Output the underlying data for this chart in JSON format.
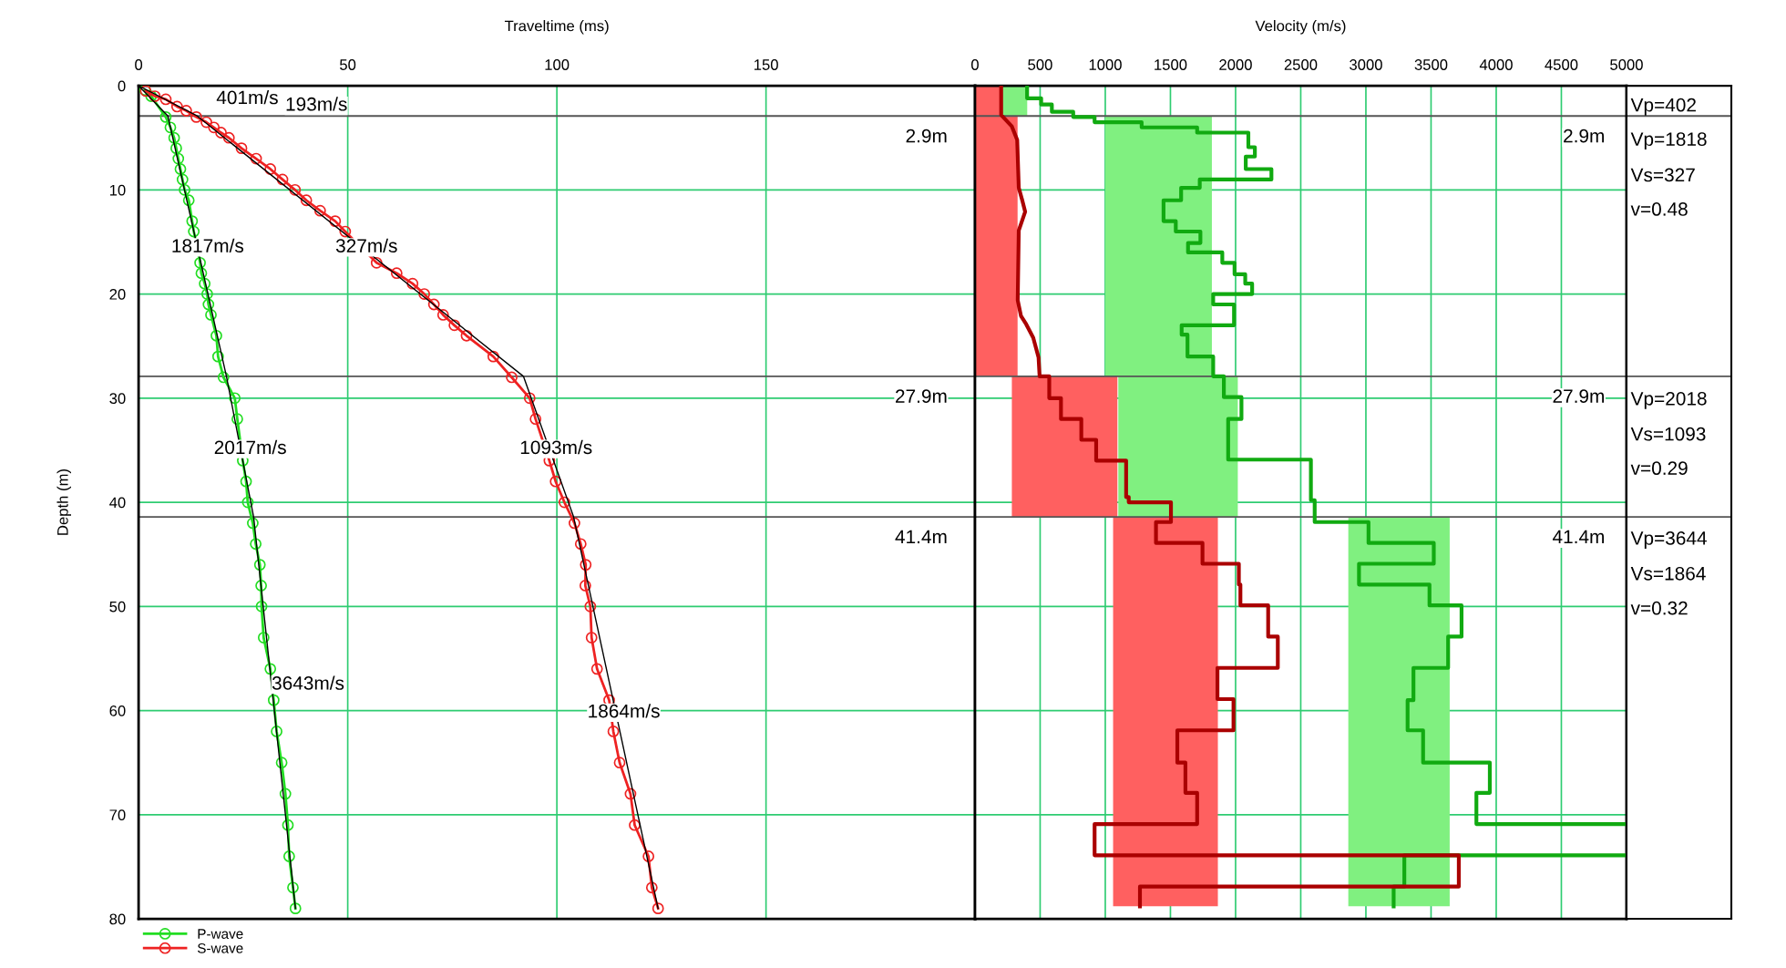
{
  "chart_data": [
    {
      "type": "line",
      "xlabel": "Traveltime (ms)",
      "ylabel": "Depth (m)",
      "xlim": [
        0,
        200
      ],
      "xticks": [
        0,
        50,
        100,
        150
      ],
      "ylim": [
        80,
        0
      ],
      "yticks": [
        0,
        10,
        20,
        30,
        40,
        50,
        60,
        70,
        80
      ],
      "grid": true,
      "legend": "bottom left",
      "series": [
        {
          "name": "P-wave",
          "color": "#22dd22",
          "marker": "circle",
          "x": [
            1.5,
            3,
            6.5,
            7.6,
            8.5,
            9,
            9.5,
            10,
            10.5,
            11,
            12,
            12.8,
            13.2,
            14.7,
            15,
            15.8,
            16.4,
            16.7,
            17.3,
            18.6,
            19,
            20.3,
            23,
            23.6,
            24.9,
            25.7,
            26.1,
            27.3,
            28,
            29,
            29.3,
            29.4,
            29.9,
            31.5,
            32.3,
            33,
            34.2,
            35.1,
            35.7,
            36,
            36.9,
            37.5
          ],
          "values": [
            0.4,
            1,
            3,
            4,
            5,
            6,
            7,
            8,
            9,
            10,
            11,
            13,
            14,
            17,
            18,
            19,
            20,
            21,
            22,
            24,
            26,
            28,
            30,
            32,
            36,
            38,
            40,
            42,
            44,
            46,
            48,
            50,
            53,
            56,
            59,
            62,
            65,
            68,
            71,
            74,
            77,
            79
          ]
        },
        {
          "name": "S-wave",
          "color": "#ee2222",
          "marker": "circle",
          "x": [
            1.7,
            3.9,
            6.5,
            9.2,
            11.4,
            13.8,
            16.2,
            18,
            19.7,
            21.6,
            24.6,
            28.1,
            31.5,
            34.4,
            37.4,
            40.1,
            43.4,
            47,
            49.4,
            56.9,
            61.7,
            65.5,
            68.3,
            70.6,
            72.8,
            75.5,
            78.4,
            84.8,
            89.2,
            93.5,
            94.9,
            98.2,
            99.7,
            101.8,
            104.2,
            105.7,
            106.9,
            106.8,
            108,
            108.3,
            109.6,
            112.5,
            113.5,
            115,
            117.6,
            118.6,
            121.9,
            122.7,
            124.2
          ],
          "values": [
            0.5,
            1,
            1.3,
            2,
            2.4,
            3,
            3.5,
            4,
            4.5,
            5,
            6,
            7,
            8,
            9,
            10,
            11,
            12,
            13,
            14,
            17,
            18,
            19,
            20,
            21,
            22,
            23,
            24,
            26,
            28,
            30,
            32,
            36,
            38,
            40,
            42,
            44,
            46,
            48,
            50,
            53,
            56,
            59,
            62,
            65,
            68,
            71,
            74,
            77,
            79
          ]
        },
        {
          "color": "#000000",
          "marker": "none",
          "x": [
            0,
            7,
            21,
            27.5,
            37.5
          ],
          "values": [
            0,
            2.9,
            27.9,
            41.4,
            79
          ]
        },
        {
          "color": "#000000",
          "marker": "none",
          "x": [
            0,
            14,
            92,
            104,
            124.2
          ],
          "values": [
            0,
            2.9,
            27.9,
            41.4,
            79
          ]
        }
      ],
      "ref_lines": [
        {
          "axis": "y",
          "value": 2.9,
          "label": "2.9m",
          "color": "#555555"
        },
        {
          "axis": "y",
          "value": 27.9,
          "label": "27.9m",
          "color": "#555555"
        },
        {
          "axis": "y",
          "value": 41.4,
          "label": "41.4m",
          "color": "#555555"
        }
      ],
      "annotations": [
        "401m/s",
        "193m/s",
        "1817m/s",
        "327m/s",
        "2017m/s",
        "1093m/s",
        "3643m/s",
        "1864m/s"
      ]
    },
    {
      "type": "line",
      "xlabel": "Velocity (m/s)",
      "xlim": [
        0,
        5000
      ],
      "xticks": [
        0,
        500,
        1000,
        1500,
        2000,
        2500,
        3000,
        3500,
        4000,
        4500,
        5000
      ],
      "ylim": [
        80,
        0
      ],
      "yticks": [
        0,
        10,
        20,
        30,
        40,
        50,
        60,
        70,
        80
      ],
      "grid": true,
      "tick_labels": "x",
      "series": [
        {
          "type": "area",
          "color": "#80f080",
          "x": [
            193,
            401,
            401,
            1818,
            1818,
            2017,
            2017,
            3643,
            3643,
            2865,
            2865,
            1100,
            1100,
            1000,
            1000,
            193
          ],
          "values": [
            0,
            0,
            2.9,
            2.9,
            27.9,
            27.9,
            41.4,
            41.4,
            78.8,
            78.8,
            41.4,
            41.4,
            27.9,
            27.9,
            2.9,
            2.9
          ]
        },
        {
          "type": "area",
          "color": "#ff6060",
          "x": [
            0,
            193,
            193,
            327,
            327,
            1093,
            1093,
            1864,
            1864,
            1060,
            1060,
            283,
            283,
            0
          ],
          "values": [
            0,
            0,
            2.9,
            2.9,
            27.9,
            27.9,
            41.4,
            41.4,
            78.8,
            78.8,
            41.4,
            41.4,
            27.9,
            27.9
          ]
        },
        {
          "type": "line",
          "color": "#11aa11",
          "x": [
            400,
            400,
            508,
            508,
            590,
            590,
            754,
            754,
            918,
            918,
            1279,
            1279,
            1705,
            1705,
            2098,
            2098,
            2148,
            2148,
            2078,
            2078,
            2275,
            2275,
            1725,
            1725,
            1582,
            1582,
            1447,
            1447,
            1541,
            1541,
            1730,
            1730,
            1635,
            1635,
            1898,
            1898,
            1992,
            1992,
            2074,
            2074,
            2127,
            2127,
            1828,
            1828,
            1988,
            1988,
            1586,
            1586,
            1631,
            1631,
            1828,
            1828,
            1910,
            1910,
            2045,
            2045,
            1943,
            1943,
            2578,
            2578,
            2607,
            2607,
            3020,
            3020,
            3521,
            3521,
            2947,
            2947,
            3488,
            3488,
            3734,
            3734,
            3631,
            3631,
            3365,
            3365,
            3320,
            3320,
            3439,
            3439,
            3951,
            3951,
            3848,
            3848,
            5000,
            null,
            5000,
            3295,
            3295,
            3213,
            3213
          ],
          "values": [
            0,
            1.2,
            1.2,
            1.8,
            1.8,
            2.5,
            2.5,
            3.0,
            3.0,
            3.5,
            3.5,
            4.0,
            4.0,
            4.5,
            4.5,
            5.9,
            5.9,
            6.8,
            6.8,
            8.0,
            8.0,
            9.0,
            9.0,
            9.8,
            9.8,
            11.0,
            11.0,
            13.0,
            13.0,
            14.0,
            14.0,
            15.1,
            15.1,
            16.0,
            16.0,
            17.0,
            17.0,
            18.1,
            18.1,
            19.0,
            19.0,
            20.0,
            20.0,
            21.0,
            21.0,
            23.0,
            23.0,
            23.9,
            23.9,
            26.0,
            26.0,
            27.9,
            27.9,
            29.9,
            29.9,
            32.0,
            32.0,
            35.9,
            35.9,
            39.8,
            39.8,
            41.9,
            41.9,
            43.9,
            43.9,
            45.9,
            45.9,
            47.9,
            47.9,
            49.9,
            49.9,
            52.9,
            52.9,
            55.9,
            55.9,
            59.0,
            59.0,
            61.9,
            61.9,
            65.0,
            65.0,
            67.9,
            67.9,
            70.9,
            70.9,
            null,
            73.9,
            73.9,
            76.9,
            76.9,
            78.8
          ]
        },
        {
          "type": "line",
          "color": "#aa0000",
          "x": [
            201,
            201,
            283,
            324,
            336,
            365,
            385,
            336,
            328,
            353,
            393,
            447,
            488,
            496,
            570,
            570,
            660,
            660,
            816,
            816,
            930,
            930,
            1094,
            1160,
            1160,
            1180,
            1180,
            1504,
            1504,
            1389,
            1389,
            1746,
            1746,
            2025,
            2025,
            2037,
            2037,
            2250,
            2250,
            2324,
            2324,
            1861,
            1861,
            1984,
            1984,
            1553,
            1553,
            1615,
            1615,
            1705,
            1705,
            918,
            918,
            3713,
            3713,
            1266,
            1266
          ],
          "values": [
            0,
            2.8,
            3.9,
            5.2,
            9.8,
            11.1,
            12.1,
            13.9,
            20.6,
            22.1,
            22.9,
            24.2,
            26.1,
            27.9,
            27.9,
            30.0,
            30.0,
            32.0,
            32.0,
            34.0,
            34.0,
            36.0,
            36.0,
            36.0,
            39.5,
            39.5,
            40.0,
            40.0,
            41.9,
            41.9,
            43.9,
            43.9,
            45.9,
            45.9,
            47.9,
            47.9,
            49.9,
            49.9,
            52.9,
            52.9,
            55.9,
            55.9,
            58.9,
            58.9,
            61.9,
            61.9,
            65.0,
            65.0,
            67.9,
            67.9,
            70.9,
            70.9,
            73.9,
            73.9,
            76.9,
            76.9,
            78.8
          ]
        }
      ],
      "ref_lines": [
        {
          "axis": "y",
          "value": 2.9,
          "label": "2.9m",
          "color": "#555555"
        },
        {
          "axis": "y",
          "value": 27.9,
          "label": "27.9m",
          "color": "#555555"
        },
        {
          "axis": "y",
          "value": 41.4,
          "label": "41.4m",
          "color": "#555555"
        }
      ]
    },
    {
      "type": "other",
      "annotations": [
        "Vp=402",
        "Vp=1818",
        "Vs=327",
        "v=0.48",
        "Vp=2018",
        "Vs=1093",
        "v=0.29",
        "Vp=3644",
        "Vs=1864",
        "v=0.32"
      ]
    }
  ]
}
